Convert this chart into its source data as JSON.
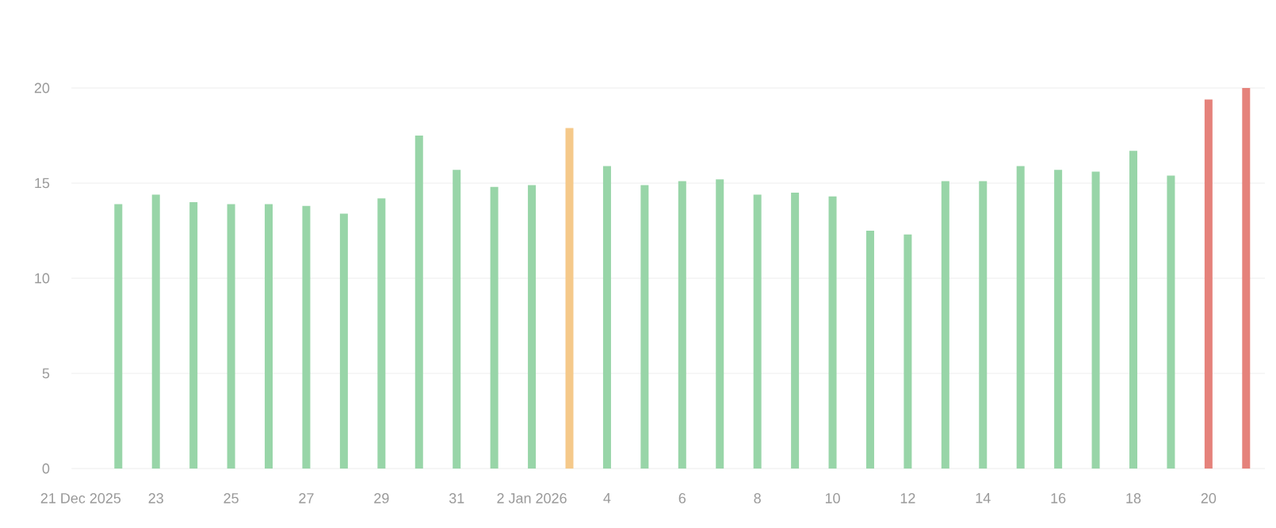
{
  "chart_data": {
    "type": "bar",
    "x": [
      "2025-12-22",
      "2025-12-23",
      "2025-12-24",
      "2025-12-25",
      "2025-12-26",
      "2025-12-27",
      "2025-12-28",
      "2025-12-29",
      "2025-12-30",
      "2025-12-31",
      "2026-01-01",
      "2026-01-02",
      "2026-01-03",
      "2026-01-04",
      "2026-01-05",
      "2026-01-06",
      "2026-01-07",
      "2026-01-08",
      "2026-01-09",
      "2026-01-10",
      "2026-01-11",
      "2026-01-12",
      "2026-01-13",
      "2026-01-14",
      "2026-01-15",
      "2026-01-16",
      "2026-01-17",
      "2026-01-18",
      "2026-01-19",
      "2026-01-20",
      "2026-01-21"
    ],
    "values": [
      13.9,
      14.4,
      14.0,
      13.9,
      13.9,
      13.8,
      13.4,
      14.2,
      17.5,
      15.7,
      14.8,
      14.9,
      17.9,
      15.9,
      14.9,
      15.1,
      15.2,
      14.4,
      14.5,
      14.3,
      12.5,
      12.3,
      15.1,
      15.1,
      15.9,
      15.7,
      15.6,
      16.7,
      15.4,
      19.4,
      20.0
    ],
    "colors": [
      "#98d5a8",
      "#98d5a8",
      "#98d5a8",
      "#98d5a8",
      "#98d5a8",
      "#98d5a8",
      "#98d5a8",
      "#98d5a8",
      "#98d5a8",
      "#98d5a8",
      "#98d5a8",
      "#98d5a8",
      "#f5c98a",
      "#98d5a8",
      "#98d5a8",
      "#98d5a8",
      "#98d5a8",
      "#98d5a8",
      "#98d5a8",
      "#98d5a8",
      "#98d5a8",
      "#98d5a8",
      "#98d5a8",
      "#98d5a8",
      "#98d5a8",
      "#98d5a8",
      "#98d5a8",
      "#98d5a8",
      "#98d5a8",
      "#e5827b",
      "#e5827b"
    ],
    "xlim": [
      "2025-12-20T18:00",
      "2026-01-21T12:00"
    ],
    "ylim": [
      0,
      20
    ],
    "xticks": [
      {
        "value": "2025-12-21",
        "label": "21 Dec 2025"
      },
      {
        "value": "2025-12-23",
        "label": "23"
      },
      {
        "value": "2025-12-25",
        "label": "25"
      },
      {
        "value": "2025-12-27",
        "label": "27"
      },
      {
        "value": "2025-12-29",
        "label": "29"
      },
      {
        "value": "2025-12-31",
        "label": "31"
      },
      {
        "value": "2026-01-02",
        "label": "2 Jan 2026"
      },
      {
        "value": "2026-01-04",
        "label": "4"
      },
      {
        "value": "2026-01-06",
        "label": "6"
      },
      {
        "value": "2026-01-08",
        "label": "8"
      },
      {
        "value": "2026-01-10",
        "label": "10"
      },
      {
        "value": "2026-01-12",
        "label": "12"
      },
      {
        "value": "2026-01-14",
        "label": "14"
      },
      {
        "value": "2026-01-16",
        "label": "16"
      },
      {
        "value": "2026-01-18",
        "label": "18"
      },
      {
        "value": "2026-01-20",
        "label": "20"
      }
    ],
    "yticks": [
      0,
      5,
      10,
      15,
      20
    ],
    "grid": "y"
  }
}
